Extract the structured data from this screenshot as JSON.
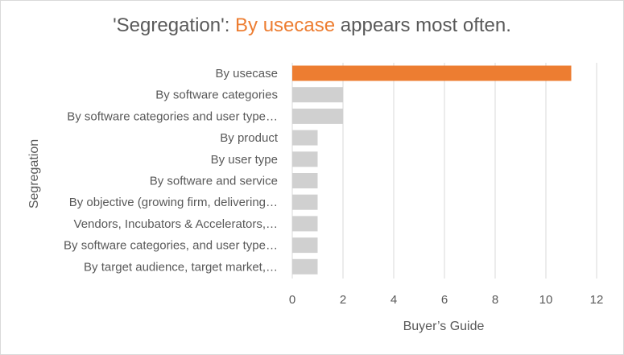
{
  "title": {
    "prefix": "'Segregation': ",
    "highlight": "By usecase",
    "suffix": " appears most often."
  },
  "chart_data": {
    "type": "bar",
    "orientation": "horizontal",
    "title": "'Segregation': By usecase appears most often.",
    "xlabel": "Buyer’s Guide",
    "ylabel": "Segregation",
    "xlim": [
      0,
      12
    ],
    "xticks": [
      0,
      2,
      4,
      6,
      8,
      10,
      12
    ],
    "grid": true,
    "categories": [
      "By usecase",
      "By software categories",
      "By software categories and user type…",
      "By product",
      "By user type",
      "By software and service",
      "By objective (growing firm, delivering…",
      "Vendors, Incubators & Accelerators,…",
      "By software categories, and user type…",
      "By target audience, target market,…"
    ],
    "values": [
      11,
      2,
      2,
      1,
      1,
      1,
      1,
      1,
      1,
      1
    ],
    "colors": {
      "highlight": "#ed7d31",
      "default": "#d0d0d0",
      "grid": "#d9d9d9",
      "text": "#595959"
    }
  }
}
